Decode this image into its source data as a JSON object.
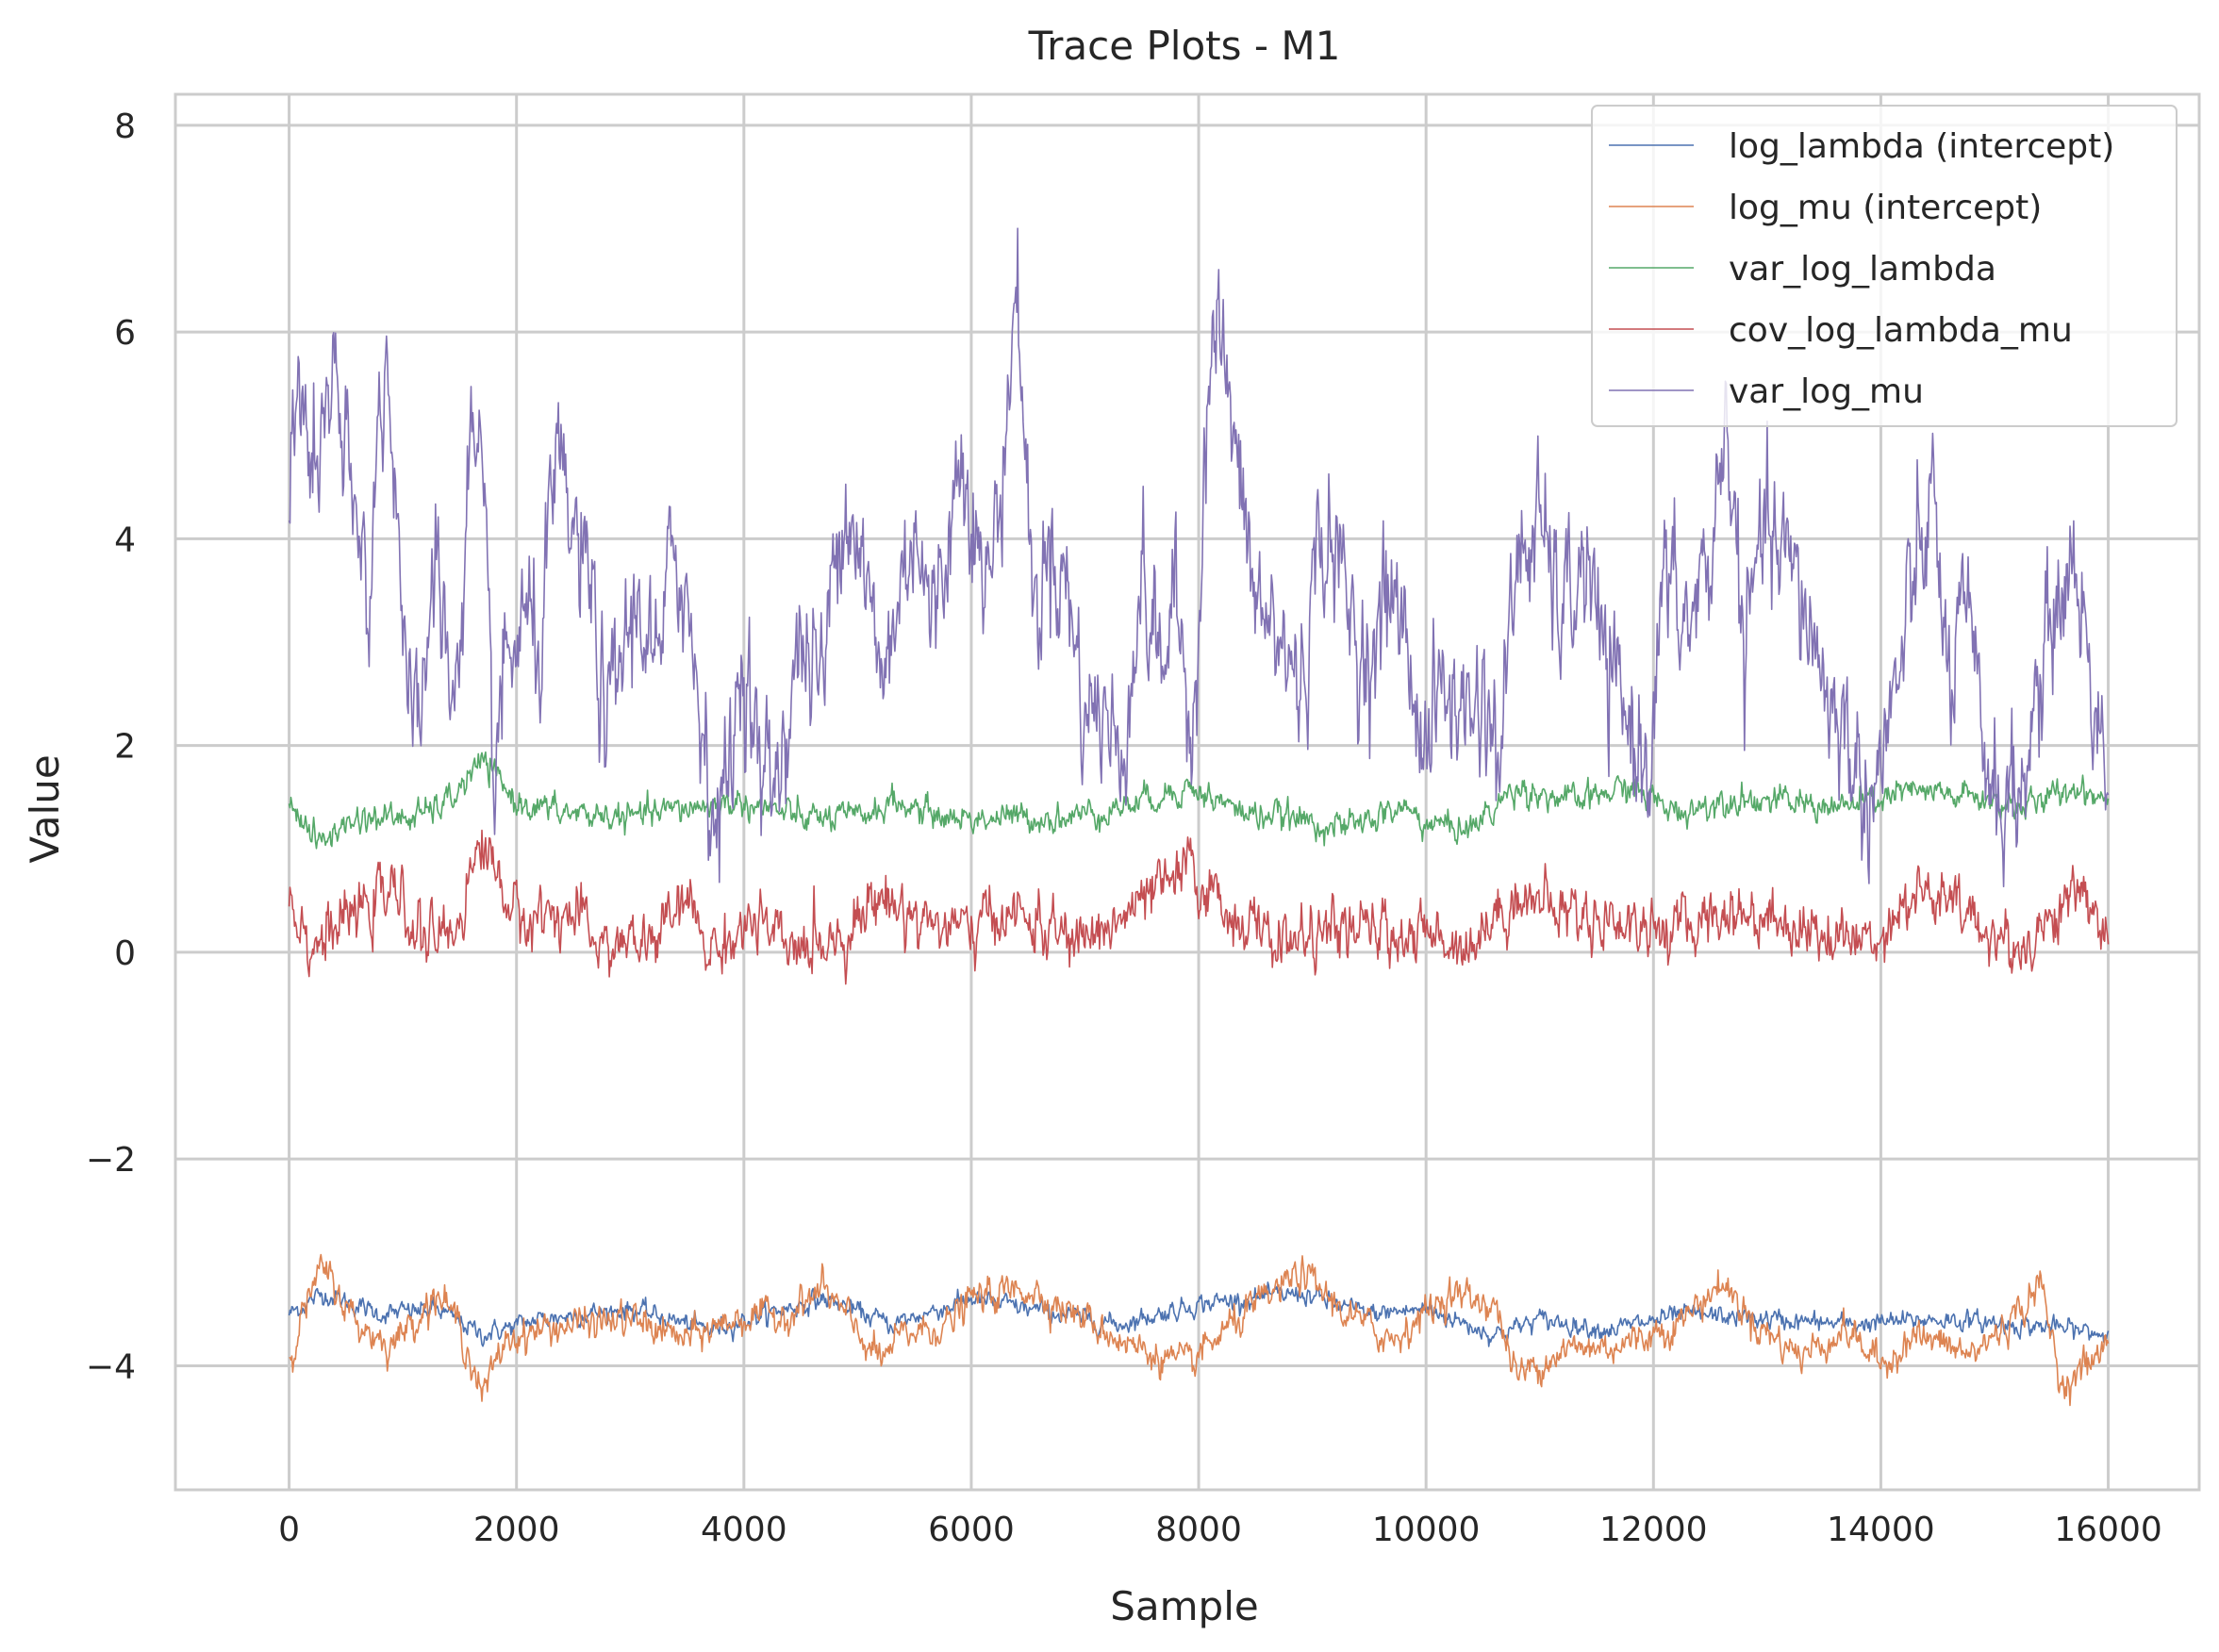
{
  "chart_data": {
    "type": "line",
    "title": "Trace Plots - M1",
    "xlabel": "Sample",
    "ylabel": "Value",
    "xlim": [
      -1000,
      16800
    ],
    "ylim": [
      -5.2,
      8.3
    ],
    "xticks": [
      0,
      2000,
      4000,
      6000,
      8000,
      10000,
      12000,
      14000,
      16000
    ],
    "yticks": [
      8,
      6,
      4,
      2,
      0,
      -2,
      -4
    ],
    "ytick_labels": [
      "8",
      "6",
      "4",
      "2",
      "0",
      "−2",
      "−4"
    ],
    "grid": true,
    "legend_position": "top-right",
    "series": [
      {
        "name": "log_lambda (intercept)",
        "color": "#4c72b0",
        "noise": 0.04,
        "x": [
          0,
          300,
          800,
          1300,
          1700,
          2200,
          3000,
          3700,
          4700,
          5300,
          6000,
          6500,
          7300,
          8000,
          8900,
          9500,
          10000,
          10600,
          11000,
          11600,
          12300,
          13000,
          13700,
          14500,
          15200,
          15700,
          16000
        ],
        "values": [
          -3.5,
          -3.3,
          -3.5,
          -3.45,
          -3.7,
          -3.55,
          -3.45,
          -3.65,
          -3.35,
          -3.6,
          -3.35,
          -3.45,
          -3.6,
          -3.4,
          -3.3,
          -3.5,
          -3.45,
          -3.7,
          -3.55,
          -3.65,
          -3.5,
          -3.55,
          -3.6,
          -3.55,
          -3.6,
          -3.65,
          -3.7
        ]
      },
      {
        "name": "log_mu (intercept)",
        "color": "#dd8452",
        "noise": 0.07,
        "x": [
          0,
          150,
          300,
          600,
          900,
          1300,
          1500,
          1700,
          1900,
          2200,
          2500,
          3000,
          3500,
          3900,
          4400,
          4700,
          5200,
          5400,
          5800,
          6000,
          6500,
          7000,
          7400,
          7900,
          8300,
          8900,
          9300,
          9700,
          10200,
          10600,
          10800,
          11200,
          11700,
          12200,
          12600,
          12900,
          13300,
          13700,
          14000,
          14300,
          14800,
          15200,
          15400,
          15600,
          16000
        ],
        "values": [
          -3.9,
          -3.4,
          -3.05,
          -3.6,
          -3.8,
          -3.3,
          -3.6,
          -4.3,
          -3.75,
          -3.65,
          -3.6,
          -3.55,
          -3.75,
          -3.55,
          -3.5,
          -3.25,
          -3.95,
          -3.7,
          -3.6,
          -3.35,
          -3.25,
          -3.55,
          -3.8,
          -4.0,
          -3.6,
          -3.1,
          -3.5,
          -3.75,
          -3.3,
          -3.4,
          -4.1,
          -3.85,
          -3.8,
          -3.6,
          -3.2,
          -3.6,
          -3.9,
          -3.65,
          -4.0,
          -3.7,
          -3.9,
          -3.5,
          -3.2,
          -4.2,
          -3.8
        ]
      },
      {
        "name": "var_log_lambda",
        "color": "#55a868",
        "noise": 0.06,
        "x": [
          0,
          250,
          600,
          1100,
          1400,
          1700,
          2000,
          2400,
          3000,
          3500,
          4000,
          4500,
          5000,
          5300,
          5800,
          6300,
          6800,
          7300,
          7900,
          8400,
          8800,
          9300,
          9800,
          10000,
          10400,
          10800,
          11300,
          11800,
          12200,
          12700,
          13200,
          13700,
          14200,
          14800,
          15300,
          15700,
          16000
        ],
        "values": [
          1.5,
          1.05,
          1.3,
          1.3,
          1.45,
          1.85,
          1.45,
          1.35,
          1.3,
          1.4,
          1.45,
          1.3,
          1.3,
          1.45,
          1.3,
          1.3,
          1.3,
          1.4,
          1.6,
          1.35,
          1.3,
          1.2,
          1.4,
          1.25,
          1.2,
          1.6,
          1.45,
          1.6,
          1.35,
          1.5,
          1.45,
          1.4,
          1.55,
          1.5,
          1.4,
          1.6,
          1.5
        ]
      },
      {
        "name": "cov_log_lambda_mu",
        "color": "#c44e52",
        "noise": 0.12,
        "x": [
          0,
          200,
          500,
          900,
          1200,
          1450,
          1700,
          2000,
          2400,
          2800,
          3200,
          3500,
          3700,
          4100,
          4400,
          4900,
          5200,
          5600,
          6000,
          6300,
          6900,
          7300,
          7900,
          8300,
          8700,
          9200,
          9600,
          10000,
          10400,
          10800,
          11200,
          11700,
          12200,
          12600,
          13000,
          13400,
          13900,
          14300,
          14700,
          15200,
          15500,
          15800,
          16000
        ],
        "values": [
          0.6,
          0.05,
          0.3,
          0.6,
          0.1,
          0.2,
          1.1,
          0.3,
          0.4,
          0.05,
          0.1,
          0.5,
          0.0,
          0.3,
          0.0,
          0.2,
          0.55,
          0.3,
          0.2,
          0.4,
          0.1,
          0.3,
          0.8,
          0.35,
          0.1,
          0.2,
          0.2,
          0.15,
          0.1,
          0.55,
          0.4,
          0.3,
          0.2,
          0.4,
          0.35,
          0.2,
          0.1,
          0.6,
          0.4,
          0.0,
          0.35,
          0.6,
          0.1
        ]
      },
      {
        "name": "var_log_mu",
        "color": "#8172b3",
        "noise": 0.3,
        "x": [
          0,
          100,
          250,
          400,
          550,
          700,
          850,
          950,
          1050,
          1150,
          1300,
          1450,
          1600,
          1700,
          1800,
          1900,
          2050,
          2200,
          2350,
          2500,
          2650,
          2800,
          2950,
          3100,
          3250,
          3400,
          3500,
          3650,
          3750,
          3850,
          4000,
          4150,
          4300,
          4500,
          4700,
          4850,
          5000,
          5200,
          5350,
          5500,
          5650,
          5800,
          5950,
          6100,
          6250,
          6400,
          6550,
          6700,
          6850,
          7000,
          7150,
          7300,
          7500,
          7650,
          7800,
          7950,
          8100,
          8200,
          8350,
          8500,
          8700,
          8900,
          9100,
          9250,
          9400,
          9550,
          9700,
          9850,
          10000,
          10150,
          10300,
          10500,
          10650,
          10800,
          11000,
          11200,
          11400,
          11600,
          11800,
          11950,
          12100,
          12300,
          12500,
          12650,
          12800,
          12950,
          13150,
          13350,
          13550,
          13700,
          13850,
          14000,
          14150,
          14300,
          14450,
          14600,
          14750,
          14900,
          15050,
          15200,
          15400,
          15550,
          15700,
          15850,
          16000
        ],
        "values": [
          4.8,
          5.2,
          4.7,
          5.5,
          4.2,
          3.6,
          5.8,
          4.5,
          2.0,
          2.4,
          3.8,
          2.3,
          4.9,
          4.2,
          1.8,
          2.6,
          3.2,
          2.9,
          4.6,
          4.0,
          3.5,
          2.1,
          3.0,
          3.4,
          2.6,
          4.1,
          3.3,
          2.2,
          1.2,
          1.6,
          3.0,
          1.6,
          1.8,
          3.0,
          2.6,
          4.5,
          4.1,
          2.6,
          3.3,
          4.3,
          3.1,
          4.1,
          5.0,
          3.4,
          4.3,
          6.5,
          3.2,
          4.0,
          3.5,
          2.3,
          2.4,
          1.8,
          3.6,
          2.8,
          3.3,
          2.2,
          5.8,
          6.0,
          4.5,
          3.4,
          3.0,
          2.6,
          4.2,
          3.6,
          3.0,
          2.9,
          3.6,
          2.8,
          2.0,
          2.6,
          2.3,
          2.5,
          1.9,
          3.8,
          4.1,
          3.2,
          3.8,
          2.6,
          2.2,
          1.8,
          3.6,
          3.1,
          3.8,
          5.2,
          2.8,
          4.0,
          3.8,
          3.3,
          2.4,
          2.1,
          1.5,
          1.8,
          2.6,
          3.6,
          4.4,
          2.6,
          3.2,
          2.0,
          1.5,
          1.4,
          2.6,
          3.4,
          3.8,
          2.6,
          1.8
        ]
      }
    ]
  }
}
